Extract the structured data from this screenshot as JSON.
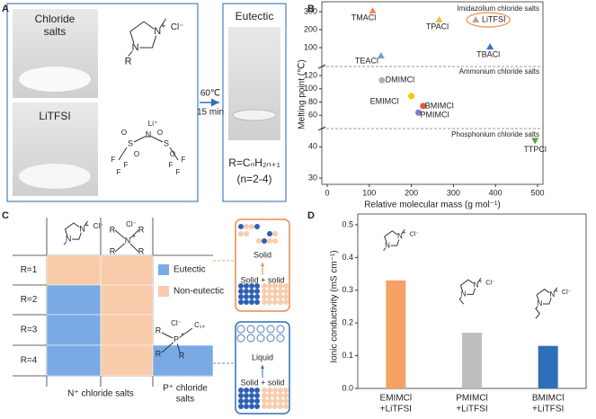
{
  "figure": {
    "a": {
      "label": "A",
      "chloride": [
        "Chloride",
        "salts"
      ],
      "litfsi": "LiTFSI",
      "temp": "60℃",
      "time": "15 min",
      "eutectic": "Eutectic",
      "formula": "R=CₙH₂ₙ₊₁",
      "n_range": "(n=2-4)"
    },
    "c": {
      "label": "C",
      "rows": [
        "R=1",
        "R=2",
        "R=3",
        "R=4"
      ],
      "cells": [
        [
          1,
          1,
          null
        ],
        [
          0,
          1,
          null
        ],
        [
          0,
          1,
          null
        ],
        [
          0,
          1,
          0
        ]
      ],
      "legend": [
        {
          "name": "Eutectic",
          "color": "#7aaae6"
        },
        {
          "name": "Non-eutectic",
          "color": "#f8cbab"
        }
      ],
      "groups": [
        [
          "N⁺ chloride salts"
        ],
        [
          "P⁺ chloride",
          "salts"
        ]
      ],
      "solid": "Solid",
      "solid_solid": "Solid + solid",
      "liquid": "Liquid"
    },
    "chem": {
      "n": "N",
      "plus": "+",
      "cl": "Cl⁻",
      "r": "R",
      "li": "Li⁺",
      "s": "S",
      "f": "F",
      "o": "O",
      "p": "P",
      "c14": "C₁₄"
    }
  },
  "chart_data": [
    {
      "type": "scatter",
      "label": "B",
      "xlabel": "Relative molecular mass (g mol⁻¹)",
      "ylabel": "Melting point (℃)",
      "xlim": [
        0,
        500
      ],
      "xticks": [
        0,
        100,
        200,
        300,
        400,
        500
      ],
      "segments": [
        {
          "name": "Imidazolium chloride salts",
          "ylim": [
            5,
            335
          ],
          "yticks": [
            100,
            200,
            300
          ],
          "points": [
            {
              "name": "TMACl",
              "x": 108,
              "y": 305,
              "color": "#ee8a4a",
              "marker": "triangle"
            },
            {
              "name": "TEACl",
              "x": 128,
              "y": 55,
              "color": "#6f9de0",
              "marker": "triangle"
            },
            {
              "name": "TPACl",
              "x": 266,
              "y": 255,
              "color": "#f0c040",
              "marker": "triangle"
            },
            {
              "name": "LiTFSI",
              "x": 353,
              "y": 255,
              "color": "#a8a8a8",
              "marker": "triangle",
              "highlight": "#f0a060"
            },
            {
              "name": "TBACl",
              "x": 387,
              "y": 105,
              "color": "#3a6fc9",
              "marker": "triangle"
            }
          ]
        },
        {
          "name": "Ammonium chloride salts",
          "ylim": [
            44,
            131
          ],
          "yticks": [
            60,
            80,
            100,
            120
          ],
          "points": [
            {
              "name": "DMIMCl",
              "x": 130,
              "y": 113,
              "color": "#b0b0b0",
              "marker": "circle"
            },
            {
              "name": "EMIMCl",
              "x": 200,
              "y": 89,
              "color": "#f5c800",
              "marker": "circle"
            },
            {
              "name": "BMIMCl",
              "x": 228,
              "y": 74,
              "color": "#e8553a",
              "marker": "circle"
            },
            {
              "name": "PMIMCl",
              "x": 217,
              "y": 64,
              "color": "#7b7bd0",
              "marker": "circle"
            }
          ]
        },
        {
          "name": "Phosphonium chloride salts",
          "ylim": [
            28,
            45
          ],
          "yticks": [
            30,
            40
          ],
          "points": [
            {
              "name": "TTPCl",
              "x": 494,
              "y": 42,
              "color": "#4caa3a",
              "marker": "down-triangle"
            }
          ]
        }
      ]
    },
    {
      "type": "bar",
      "label": "D",
      "ylabel": "Ionic conductivity (mS cm⁻¹)",
      "ylim": [
        0,
        0.5
      ],
      "yticks": [
        {
          "value": 0,
          "label": "0.0"
        },
        {
          "value": 0.1,
          "label": "0.1"
        },
        {
          "value": 0.2,
          "label": "0.2"
        },
        {
          "value": 0.3,
          "label": "0.3"
        },
        {
          "value": 0.4,
          "label": "0.4"
        },
        {
          "value": 0.5,
          "label": "0.5"
        }
      ],
      "categories": [
        [
          "EMIMCl",
          "+LiTFSI"
        ],
        [
          "PMIMCl",
          "+LiTFSI"
        ],
        [
          "BMIMCl",
          "+LiTFSI"
        ]
      ],
      "values": [
        0.33,
        0.17,
        0.13
      ],
      "colors": [
        "#f7a064",
        "#bdbdbd",
        "#2f6fb8"
      ]
    }
  ]
}
